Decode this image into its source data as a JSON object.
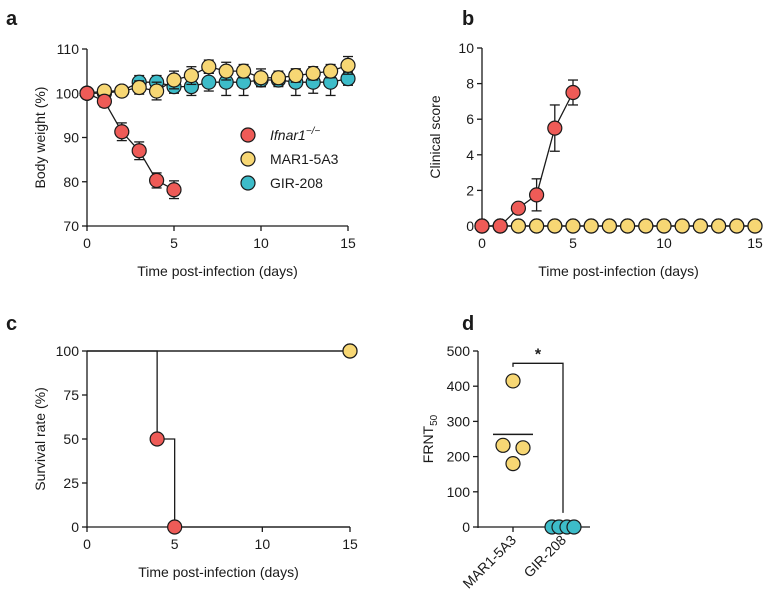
{
  "colors": {
    "ifnar": "#EE5B57",
    "mar": "#F7D774",
    "gir": "#3DBCC9"
  },
  "chart_data": [
    {
      "panel": "a",
      "type": "line",
      "xlabel": "Time post-infection (days)",
      "ylabel": "Body weight (%)",
      "xlim": [
        0,
        15
      ],
      "ylim": [
        70,
        110
      ],
      "xticks": [
        0,
        5,
        10,
        15
      ],
      "yticks": [
        70,
        80,
        90,
        100,
        110
      ],
      "legend": {
        "placement": "center-right",
        "entries": [
          "Ifnar1",
          "MAR1-5A3",
          "GIR-208"
        ],
        "superscript": "−/−"
      },
      "series": [
        {
          "name": "GIR-208",
          "color": "gir",
          "x": [
            0,
            1,
            2,
            3,
            4,
            5,
            6,
            7,
            8,
            9,
            10,
            11,
            12,
            13,
            14,
            15
          ],
          "y": [
            100,
            100,
            100.5,
            102.5,
            102.5,
            101.5,
            101.5,
            102.5,
            102.5,
            102.5,
            103,
            103,
            102.5,
            102.5,
            102.5,
            103.3
          ],
          "err": [
            0,
            1,
            1,
            1.5,
            1.5,
            1.5,
            2,
            2,
            3,
            3,
            1.5,
            1.5,
            3,
            2.5,
            3,
            1.5
          ]
        },
        {
          "name": "MAR1-5A3",
          "color": "mar",
          "x": [
            0,
            1,
            2,
            3,
            4,
            5,
            6,
            7,
            8,
            9,
            10,
            11,
            12,
            13,
            14,
            15
          ],
          "y": [
            100,
            100.5,
            100.5,
            101.3,
            100.5,
            103,
            104,
            106,
            105,
            105,
            103.5,
            103.5,
            104,
            104.5,
            105,
            106.3
          ],
          "err": [
            0,
            1,
            1,
            1.5,
            2,
            2,
            2,
            1.5,
            2,
            1.5,
            2,
            1.5,
            1.5,
            1.5,
            1.5,
            2
          ]
        },
        {
          "name": "Ifnar1",
          "color": "ifnar",
          "x": [
            0,
            1,
            2,
            3,
            4,
            5
          ],
          "y": [
            100,
            98.2,
            91.3,
            87,
            80.3,
            78.2
          ],
          "err": [
            0,
            1.3,
            2,
            2,
            1.7,
            2
          ]
        }
      ]
    },
    {
      "panel": "b",
      "type": "line",
      "xlabel": "Time post-infection (days)",
      "ylabel": "Clinical score",
      "xlim": [
        0,
        15
      ],
      "ylim": [
        0,
        10
      ],
      "xticks": [
        0,
        5,
        10,
        15
      ],
      "yticks": [
        0,
        2,
        4,
        6,
        8,
        10
      ],
      "series": [
        {
          "name": "GIR-208",
          "color": "gir",
          "x": [
            0,
            1,
            2,
            3,
            4,
            5,
            6,
            7,
            8,
            9,
            10,
            11,
            12,
            13,
            14,
            15
          ],
          "y": [
            0,
            0,
            0,
            0,
            0,
            0,
            0,
            0,
            0,
            0,
            0,
            0,
            0,
            0,
            0,
            0
          ],
          "err": []
        },
        {
          "name": "MAR1-5A3",
          "color": "mar",
          "x": [
            0,
            1,
            2,
            3,
            4,
            5,
            6,
            7,
            8,
            9,
            10,
            11,
            12,
            13,
            14,
            15
          ],
          "y": [
            0,
            0,
            0,
            0,
            0,
            0,
            0,
            0,
            0,
            0,
            0,
            0,
            0,
            0,
            0,
            0
          ],
          "err": []
        },
        {
          "name": "Ifnar1",
          "color": "ifnar",
          "x": [
            0,
            1,
            2,
            3,
            4,
            5
          ],
          "y": [
            0,
            0,
            1,
            1.75,
            5.5,
            7.5
          ],
          "err": [
            0,
            0,
            0,
            0.9,
            1.3,
            0.7
          ]
        }
      ]
    },
    {
      "panel": "c",
      "type": "line",
      "step": true,
      "xlabel": "Time post-infection (days)",
      "ylabel": "Survival rate (%)",
      "xlim": [
        0,
        15
      ],
      "ylim": [
        0,
        100
      ],
      "xticks": [
        0,
        5,
        10,
        15
      ],
      "yticks": [
        0,
        25,
        50,
        75,
        100
      ],
      "series": [
        {
          "name": "GIR-208",
          "color": "gir",
          "x": [
            0,
            15
          ],
          "y": [
            100,
            100
          ],
          "markers": [
            15
          ]
        },
        {
          "name": "MAR1-5A3",
          "color": "mar",
          "x": [
            0,
            15
          ],
          "y": [
            100,
            100
          ],
          "markers": [
            15
          ]
        },
        {
          "name": "Ifnar1",
          "color": "ifnar",
          "x": [
            0,
            4,
            5
          ],
          "y": [
            100,
            50,
            0
          ],
          "markers": [
            4,
            5
          ]
        }
      ]
    },
    {
      "panel": "d",
      "type": "scatter",
      "ylabel": "FRNT",
      "ylabel_sub": "50",
      "ylim": [
        0,
        500
      ],
      "yticks": [
        0,
        100,
        200,
        300,
        400,
        500
      ],
      "categories": [
        "MAR1-5A3",
        "GIR-208"
      ],
      "groups": [
        {
          "category": "MAR1-5A3",
          "color": "mar",
          "values": [
            415,
            232,
            225,
            180
          ],
          "mean": 263
        },
        {
          "category": "GIR-208",
          "color": "gir",
          "values": [
            0,
            0,
            0,
            0
          ],
          "mean": 0
        }
      ],
      "annotation": "*"
    }
  ]
}
